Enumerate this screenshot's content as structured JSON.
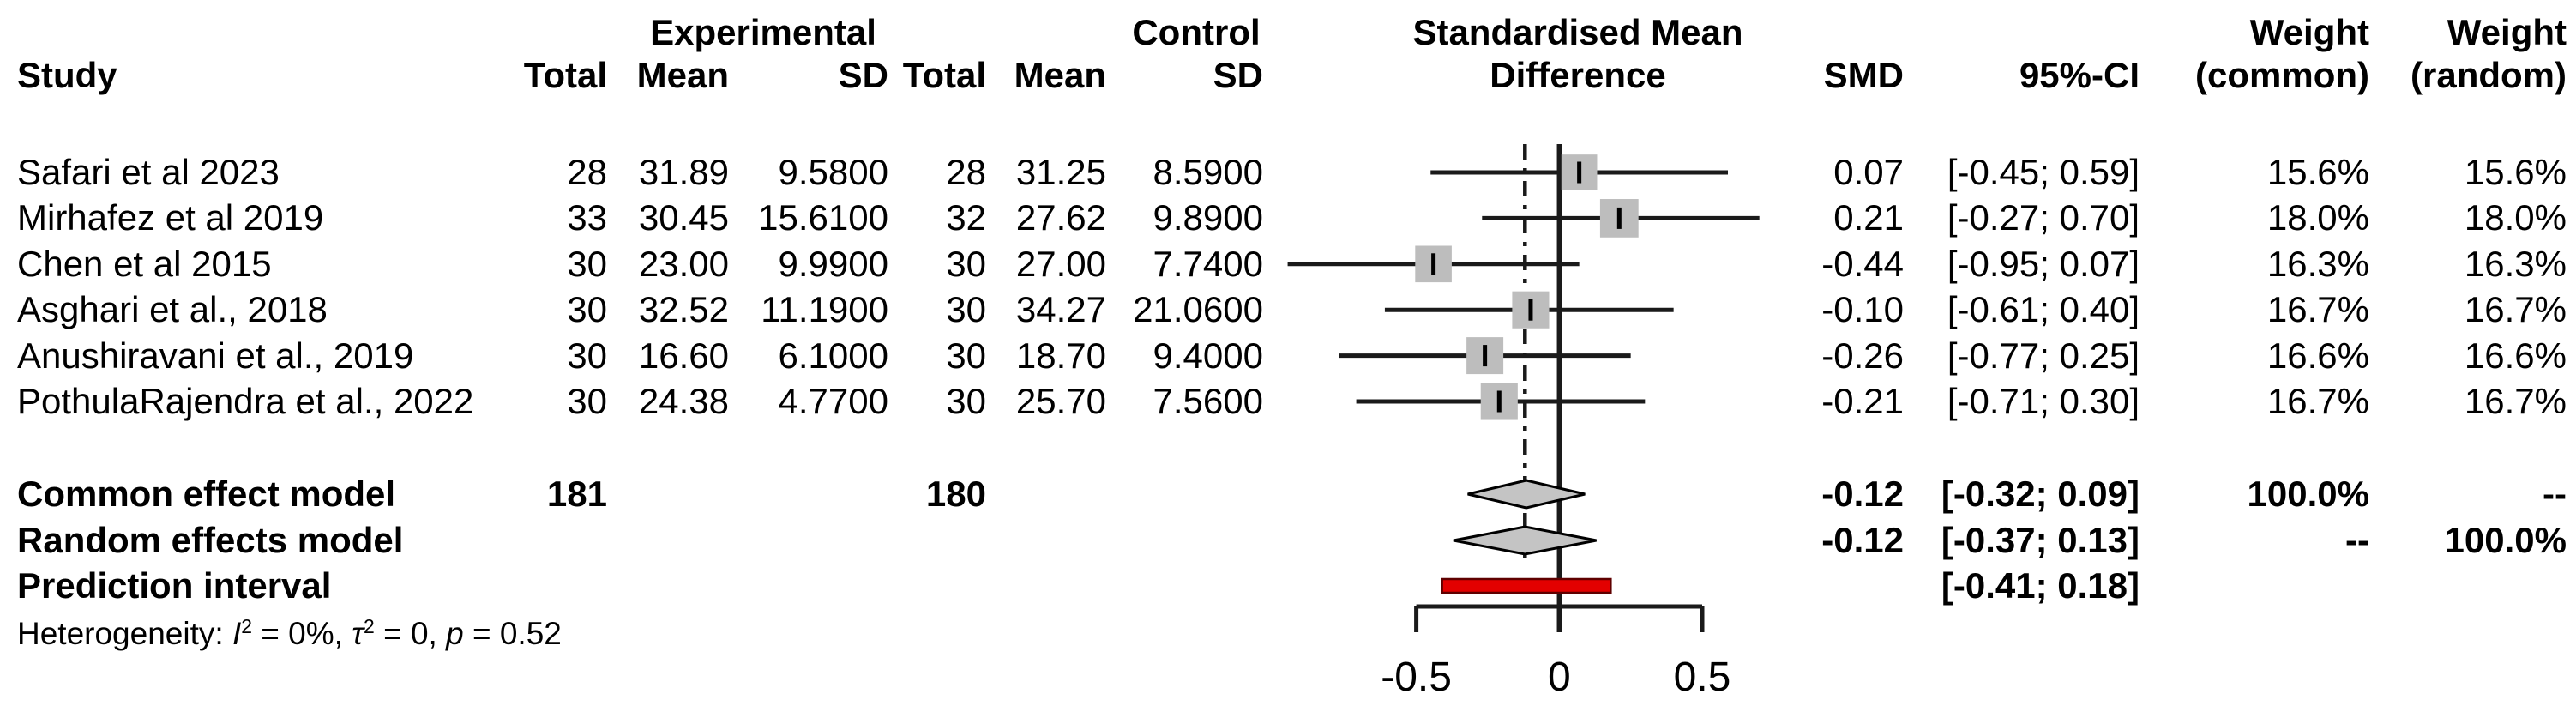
{
  "headers": {
    "group_experimental": "Experimental",
    "group_control": "Control",
    "effect_line1": "Standardised Mean",
    "effect_line2": "Difference",
    "study": "Study",
    "total": "Total",
    "mean": "Mean",
    "sd": "SD",
    "smd": "SMD",
    "ci": "95%-CI",
    "weight": "Weight",
    "weight_common": "(common)",
    "weight_random": "(random)"
  },
  "chart_data": {
    "type": "forest",
    "effect_measure": "Standardised Mean Difference",
    "axis": {
      "ticks": [
        -0.5,
        0,
        0.5
      ],
      "tick_labels": [
        "-0.5",
        "0",
        "0.5"
      ],
      "zero_line": 0,
      "pooled_effect_line": -0.12,
      "xlim": [
        -0.5,
        0.5
      ]
    },
    "studies": [
      {
        "name": "Safari et al 2023",
        "exp_total": "28",
        "exp_mean": "31.89",
        "exp_sd": "9.5800",
        "ctrl_total": "28",
        "ctrl_mean": "31.25",
        "ctrl_sd": "8.5900",
        "smd": 0.07,
        "ci_low": -0.45,
        "ci_high": 0.59,
        "smd_label": "0.07",
        "ci_label": "[-0.45; 0.59]",
        "w_common": "15.6%",
        "w_random": "15.6%",
        "weight_pct": 15.6
      },
      {
        "name": "Mirhafez et al 2019",
        "exp_total": "33",
        "exp_mean": "30.45",
        "exp_sd": "15.6100",
        "ctrl_total": "32",
        "ctrl_mean": "27.62",
        "ctrl_sd": "9.8900",
        "smd": 0.21,
        "ci_low": -0.27,
        "ci_high": 0.7,
        "smd_label": "0.21",
        "ci_label": "[-0.27; 0.70]",
        "w_common": "18.0%",
        "w_random": "18.0%",
        "weight_pct": 18.0
      },
      {
        "name": "Chen et al 2015",
        "exp_total": "30",
        "exp_mean": "23.00",
        "exp_sd": "9.9900",
        "ctrl_total": "30",
        "ctrl_mean": "27.00",
        "ctrl_sd": "7.7400",
        "smd": -0.44,
        "ci_low": -0.95,
        "ci_high": 0.07,
        "smd_label": "-0.44",
        "ci_label": "[-0.95; 0.07]",
        "w_common": "16.3%",
        "w_random": "16.3%",
        "weight_pct": 16.3
      },
      {
        "name": "Asghari et al., 2018",
        "exp_total": "30",
        "exp_mean": "32.52",
        "exp_sd": "11.1900",
        "ctrl_total": "30",
        "ctrl_mean": "34.27",
        "ctrl_sd": "21.0600",
        "smd": -0.1,
        "ci_low": -0.61,
        "ci_high": 0.4,
        "smd_label": "-0.10",
        "ci_label": "[-0.61; 0.40]",
        "w_common": "16.7%",
        "w_random": "16.7%",
        "weight_pct": 16.7
      },
      {
        "name": "Anushiravani et al., 2019",
        "exp_total": "30",
        "exp_mean": "16.60",
        "exp_sd": "6.1000",
        "ctrl_total": "30",
        "ctrl_mean": "18.70",
        "ctrl_sd": "9.4000",
        "smd": -0.26,
        "ci_low": -0.77,
        "ci_high": 0.25,
        "smd_label": "-0.26",
        "ci_label": "[-0.77; 0.25]",
        "w_common": "16.6%",
        "w_random": "16.6%",
        "weight_pct": 16.6
      },
      {
        "name": "PothulaRajendra et al., 2022",
        "exp_total": "30",
        "exp_mean": "24.38",
        "exp_sd": "4.7700",
        "ctrl_total": "30",
        "ctrl_mean": "25.70",
        "ctrl_sd": "7.5600",
        "smd": -0.21,
        "ci_low": -0.71,
        "ci_high": 0.3,
        "smd_label": "-0.21",
        "ci_label": "[-0.71; 0.30]",
        "w_common": "16.7%",
        "w_random": "16.7%",
        "weight_pct": 16.7
      }
    ],
    "summary_rows": [
      {
        "name": "Common effect model",
        "shape": "diamond",
        "exp_total": "181",
        "ctrl_total": "180",
        "smd": -0.12,
        "ci_low": -0.32,
        "ci_high": 0.09,
        "smd_label": "-0.12",
        "ci_label": "[-0.32; 0.09]",
        "w_common": "100.0%",
        "w_random": "--"
      },
      {
        "name": "Random effects model",
        "shape": "diamond",
        "exp_total": "",
        "ctrl_total": "",
        "smd": -0.12,
        "ci_low": -0.37,
        "ci_high": 0.13,
        "smd_label": "-0.12",
        "ci_label": "[-0.37; 0.13]",
        "w_common": "--",
        "w_random": "100.0%"
      },
      {
        "name": "Prediction interval",
        "shape": "bar",
        "exp_total": "",
        "ctrl_total": "",
        "ci_low": -0.41,
        "ci_high": 0.18,
        "smd_label": "",
        "ci_label": "[-0.41; 0.18]",
        "w_common": "",
        "w_random": ""
      }
    ],
    "heterogeneity_parts": [
      {
        "t": "Heterogeneity: ",
        "s": "plain"
      },
      {
        "t": "I",
        "s": "italic"
      },
      {
        "t": "2",
        "s": "sup"
      },
      {
        "t": " = 0%, ",
        "s": "plain"
      },
      {
        "t": "τ",
        "s": "italic"
      },
      {
        "t": "2",
        "s": "sup"
      },
      {
        "t": " = 0, ",
        "s": "plain"
      },
      {
        "t": "p",
        "s": "italic"
      },
      {
        "t": " = 0.52",
        "s": "plain"
      }
    ],
    "colors": {
      "square_fill": "#bdbdbd",
      "diamond_fill": "#c4c4c4",
      "prediction_bar_fill": "#e30000",
      "prediction_bar_border": "#5f0000",
      "line_color": "#1a1a1a"
    }
  }
}
